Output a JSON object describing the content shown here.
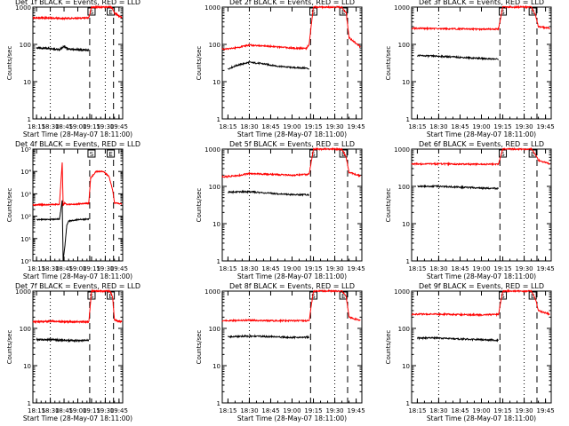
{
  "colors": {
    "events": "#000000",
    "lld": "#ff0000",
    "axis": "#000000"
  },
  "chart_data": [
    {
      "type": "line",
      "title": "Det 1f BLACK = Events, RED = LLD",
      "xlabel": "Start Time (28-May-07 18:11:00)",
      "ylabel": "Counts/sec",
      "y_scale": "log",
      "ylim": [
        1,
        1000
      ],
      "y_ticks": [
        "1",
        "10",
        "100",
        "1000"
      ],
      "x_ticks": [
        "18:15",
        "18:30",
        "18:45",
        "19:00",
        "19:15",
        "19:30",
        "19:45"
      ],
      "markers": [
        "S",
        "E"
      ],
      "series": [
        {
          "name": "Events",
          "color": "black",
          "x": [
            "18:15",
            "18:30",
            "18:40",
            "18:45",
            "18:50",
            "19:00",
            "19:12"
          ],
          "values": [
            80,
            78,
            72,
            88,
            74,
            72,
            70
          ]
        },
        {
          "name": "LLD",
          "color": "red",
          "x": [
            "18:11",
            "18:20",
            "18:30",
            "18:45",
            "19:00",
            "19:12",
            "19:15",
            "19:20",
            "19:35",
            "19:38",
            "19:40",
            "19:48"
          ],
          "values": [
            520,
            515,
            505,
            500,
            500,
            520,
            1000,
            1000,
            1000,
            900,
            700,
            520
          ]
        }
      ]
    },
    {
      "type": "line",
      "title": "Det 2f BLACK = Events, RED = LLD",
      "xlabel": "Start Time (28-May-07 18:11:00)",
      "ylabel": "Counts/sec",
      "y_scale": "log",
      "ylim": [
        1,
        1000
      ],
      "y_ticks": [
        "1",
        "10",
        "100",
        "1000"
      ],
      "x_ticks": [
        "18:15",
        "18:30",
        "18:45",
        "19:00",
        "19:15",
        "19:30",
        "19:45"
      ],
      "markers": [
        "S",
        "E"
      ],
      "series": [
        {
          "name": "Events",
          "color": "black",
          "x": [
            "18:15",
            "18:22",
            "18:30",
            "18:40",
            "18:50",
            "19:00",
            "19:10",
            "19:12"
          ],
          "values": [
            22,
            28,
            33,
            30,
            26,
            24,
            23,
            22
          ]
        },
        {
          "name": "LLD",
          "color": "red",
          "x": [
            "18:11",
            "18:20",
            "18:30",
            "18:40",
            "18:50",
            "19:00",
            "19:10",
            "19:12",
            "19:15",
            "19:20",
            "19:35",
            "19:38",
            "19:40",
            "19:48"
          ],
          "values": [
            75,
            80,
            95,
            92,
            85,
            80,
            78,
            100,
            1000,
            1000,
            1000,
            700,
            150,
            85
          ]
        }
      ]
    },
    {
      "type": "line",
      "title": "Det 3f BLACK = Events, RED = LLD",
      "xlabel": "Start Time (28-May-07 18:11:00)",
      "ylabel": "Counts/sec",
      "y_scale": "log",
      "ylim": [
        1,
        1000
      ],
      "y_ticks": [
        "1",
        "10",
        "100",
        "1000"
      ],
      "x_ticks": [
        "18:15",
        "18:30",
        "18:45",
        "19:00",
        "19:15",
        "19:30",
        "19:45"
      ],
      "markers": [
        "S",
        "E"
      ],
      "series": [
        {
          "name": "Events",
          "color": "black",
          "x": [
            "18:15",
            "18:30",
            "18:45",
            "19:00",
            "19:12"
          ],
          "values": [
            50,
            48,
            45,
            42,
            40
          ]
        },
        {
          "name": "LLD",
          "color": "red",
          "x": [
            "18:11",
            "18:30",
            "18:45",
            "19:00",
            "19:12",
            "19:15",
            "19:20",
            "19:35",
            "19:38",
            "19:40",
            "19:48"
          ],
          "values": [
            270,
            265,
            260,
            255,
            260,
            1000,
            1000,
            1000,
            600,
            300,
            270
          ]
        }
      ]
    },
    {
      "type": "line",
      "title": "Det 4f BLACK = Events, RED = LLD",
      "xlabel": "Start Time (28-May-07 18:11:00)",
      "ylabel": "Counts/sec",
      "y_scale": "log",
      "ylim": [
        1,
        100000
      ],
      "y_ticks": [
        "10⁰",
        "10¹",
        "10²",
        "10³",
        "10⁴",
        "10⁵"
      ],
      "x_ticks": [
        "18:15",
        "18:30",
        "18:45",
        "19:00",
        "19:15",
        "19:30",
        "19:45"
      ],
      "markers": [
        "S",
        "E"
      ],
      "series": [
        {
          "name": "Events",
          "color": "black",
          "x": [
            "18:15",
            "18:30",
            "18:40",
            "18:43",
            "18:44",
            "18:46",
            "18:48",
            "18:50",
            "19:00",
            "19:12"
          ],
          "values": [
            70,
            72,
            75,
            500,
            1,
            5,
            40,
            60,
            70,
            75
          ]
        },
        {
          "name": "LLD",
          "color": "red",
          "x": [
            "18:11",
            "18:30",
            "18:40",
            "18:43",
            "18:44",
            "18:46",
            "18:48",
            "18:55",
            "19:05",
            "19:12",
            "19:14",
            "19:20",
            "19:28",
            "19:34",
            "19:38",
            "19:40",
            "19:48"
          ],
          "values": [
            320,
            330,
            340,
            25000,
            300,
            400,
            330,
            340,
            360,
            380,
            5000,
            10000,
            10000,
            6000,
            1500,
            400,
            350
          ]
        }
      ]
    },
    {
      "type": "line",
      "title": "Det 5f BLACK = Events, RED = LLD",
      "xlabel": "Start Time (28-May-07 18:11:00)",
      "ylabel": "Counts/sec",
      "y_scale": "log",
      "ylim": [
        1,
        1000
      ],
      "y_ticks": [
        "1",
        "10",
        "100",
        "1000"
      ],
      "x_ticks": [
        "18:15",
        "18:30",
        "18:45",
        "19:00",
        "19:15",
        "19:30",
        "19:45"
      ],
      "markers": [
        "S",
        "E"
      ],
      "series": [
        {
          "name": "Events",
          "color": "black",
          "x": [
            "18:15",
            "18:30",
            "18:45",
            "19:00",
            "19:12"
          ],
          "values": [
            70,
            72,
            65,
            60,
            60
          ]
        },
        {
          "name": "LLD",
          "color": "red",
          "x": [
            "18:11",
            "18:20",
            "18:30",
            "18:45",
            "19:00",
            "19:12",
            "19:15",
            "19:20",
            "19:35",
            "19:38",
            "19:40",
            "19:48"
          ],
          "values": [
            180,
            190,
            220,
            210,
            200,
            210,
            1000,
            1000,
            1000,
            600,
            240,
            190
          ]
        }
      ]
    },
    {
      "type": "line",
      "title": "Det 6f BLACK = Events, RED = LLD",
      "xlabel": "Start Time (28-May-07 18:11:00)",
      "ylabel": "Counts/sec",
      "y_scale": "log",
      "ylim": [
        1,
        1000
      ],
      "y_ticks": [
        "1",
        "10",
        "100",
        "1000"
      ],
      "x_ticks": [
        "18:15",
        "18:30",
        "18:45",
        "19:00",
        "19:15",
        "19:30",
        "19:45"
      ],
      "markers": [
        "S",
        "E"
      ],
      "series": [
        {
          "name": "Events",
          "color": "black",
          "x": [
            "18:15",
            "18:30",
            "18:45",
            "19:00",
            "19:12"
          ],
          "values": [
            100,
            100,
            95,
            90,
            88
          ]
        },
        {
          "name": "LLD",
          "color": "red",
          "x": [
            "18:11",
            "18:30",
            "18:45",
            "19:00",
            "19:12",
            "19:15",
            "19:20",
            "19:35",
            "19:38",
            "19:40",
            "19:48"
          ],
          "values": [
            400,
            400,
            395,
            390,
            400,
            1000,
            1000,
            1000,
            700,
            500,
            400
          ]
        }
      ]
    },
    {
      "type": "line",
      "title": "Det 7f BLACK = Events, RED = LLD",
      "xlabel": "Start Time (28-May-07 18:11:00)",
      "ylabel": "Counts/sec",
      "y_scale": "log",
      "ylim": [
        1,
        1000
      ],
      "y_ticks": [
        "1",
        "10",
        "100",
        "1000"
      ],
      "x_ticks": [
        "18:15",
        "18:30",
        "18:45",
        "19:00",
        "19:15",
        "19:30",
        "19:45"
      ],
      "markers": [
        "S",
        "E"
      ],
      "series": [
        {
          "name": "Events",
          "color": "black",
          "x": [
            "18:15",
            "18:30",
            "18:45",
            "19:00",
            "19:12"
          ],
          "values": [
            50,
            50,
            48,
            47,
            48
          ]
        },
        {
          "name": "LLD",
          "color": "red",
          "x": [
            "18:11",
            "18:30",
            "18:45",
            "19:00",
            "19:12",
            "19:15",
            "19:20",
            "19:35",
            "19:38",
            "19:40",
            "19:48"
          ],
          "values": [
            150,
            155,
            150,
            150,
            150,
            1000,
            1000,
            1000,
            700,
            170,
            150
          ]
        }
      ]
    },
    {
      "type": "line",
      "title": "Det 8f BLACK = Events, RED = LLD",
      "xlabel": "Start Time (28-May-07 18:11:00)",
      "ylabel": "Counts/sec",
      "y_scale": "log",
      "ylim": [
        1,
        1000
      ],
      "y_ticks": [
        "1",
        "10",
        "100",
        "1000"
      ],
      "x_ticks": [
        "18:15",
        "18:30",
        "18:45",
        "19:00",
        "19:15",
        "19:30",
        "19:45"
      ],
      "markers": [
        "S",
        "E"
      ],
      "series": [
        {
          "name": "Events",
          "color": "black",
          "x": [
            "18:15",
            "18:30",
            "18:45",
            "19:00",
            "19:12"
          ],
          "values": [
            60,
            62,
            60,
            57,
            58
          ]
        },
        {
          "name": "LLD",
          "color": "red",
          "x": [
            "18:11",
            "18:30",
            "18:45",
            "19:00",
            "19:12",
            "19:15",
            "19:20",
            "19:35",
            "19:38",
            "19:40",
            "19:48"
          ],
          "values": [
            160,
            165,
            160,
            160,
            160,
            1000,
            1000,
            1000,
            700,
            200,
            160
          ]
        }
      ]
    },
    {
      "type": "line",
      "title": "Det 9f BLACK = Events, RED = LLD",
      "xlabel": "Start Time (28-May-07 18:11:00)",
      "ylabel": "Counts/sec",
      "y_scale": "log",
      "ylim": [
        1,
        1000
      ],
      "y_ticks": [
        "1",
        "10",
        "100",
        "1000"
      ],
      "x_ticks": [
        "18:15",
        "18:30",
        "18:45",
        "19:00",
        "19:15",
        "19:30",
        "19:45"
      ],
      "markers": [
        "S",
        "E"
      ],
      "series": [
        {
          "name": "Events",
          "color": "black",
          "x": [
            "18:15",
            "18:30",
            "18:45",
            "19:00",
            "19:12"
          ],
          "values": [
            55,
            55,
            52,
            50,
            48
          ]
        },
        {
          "name": "LLD",
          "color": "red",
          "x": [
            "18:11",
            "18:30",
            "18:45",
            "19:00",
            "19:12",
            "19:15",
            "19:20",
            "19:35",
            "19:38",
            "19:40",
            "19:48"
          ],
          "values": [
            240,
            240,
            235,
            230,
            235,
            1000,
            1000,
            1000,
            600,
            300,
            240
          ]
        }
      ]
    }
  ]
}
